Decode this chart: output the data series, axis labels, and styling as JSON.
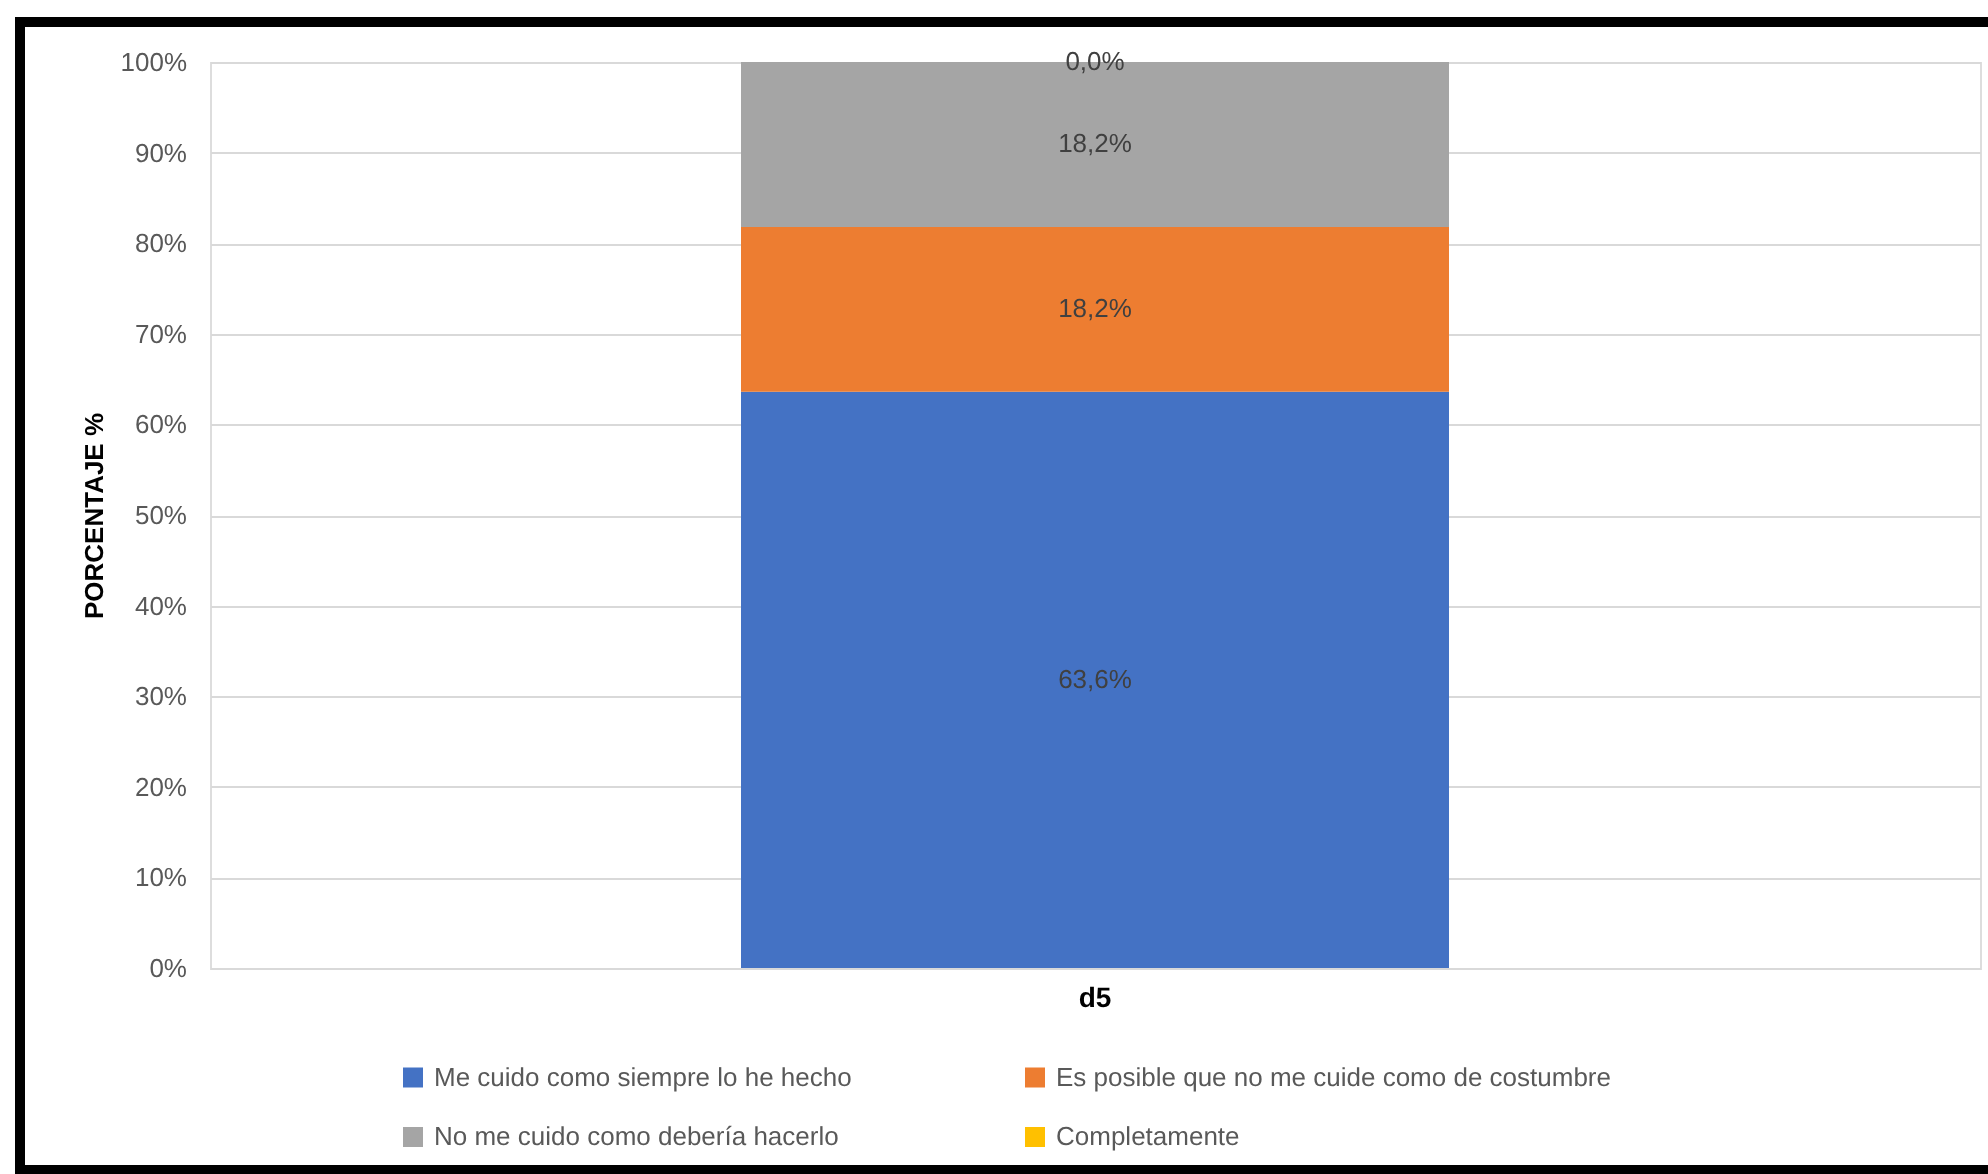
{
  "chart_data": {
    "type": "bar",
    "stacked": true,
    "ylabel": "PORCENTAJE %",
    "categories": [
      "d5"
    ],
    "series": [
      {
        "name": "Me cuido como siempre lo he hecho",
        "color": "#4472c4",
        "values": [
          63.6
        ],
        "value_labels": [
          "63,6%"
        ]
      },
      {
        "name": "Es posible que no me cuide como de costumbre",
        "color": "#ed7d31",
        "values": [
          18.2
        ],
        "value_labels": [
          "18,2%"
        ]
      },
      {
        "name": "No me cuido como debería hacerlo",
        "color": "#a5a5a5",
        "values": [
          18.2
        ],
        "value_labels": [
          "18,2%"
        ]
      },
      {
        "name": "Completamente",
        "color": "#ffc000",
        "values": [
          0.0
        ],
        "value_labels": [
          "0,0%"
        ]
      }
    ],
    "ylim": [
      0,
      100
    ],
    "yticks": [
      {
        "value": 0,
        "label": "0%"
      },
      {
        "value": 10,
        "label": "10%"
      },
      {
        "value": 20,
        "label": "20%"
      },
      {
        "value": 30,
        "label": "30%"
      },
      {
        "value": 40,
        "label": "40%"
      },
      {
        "value": 50,
        "label": "50%"
      },
      {
        "value": 60,
        "label": "60%"
      },
      {
        "value": 70,
        "label": "70%"
      },
      {
        "value": 80,
        "label": "80%"
      },
      {
        "value": 90,
        "label": "90%"
      },
      {
        "value": 100,
        "label": "100%"
      }
    ],
    "grid": "y",
    "legend": "bottom"
  }
}
